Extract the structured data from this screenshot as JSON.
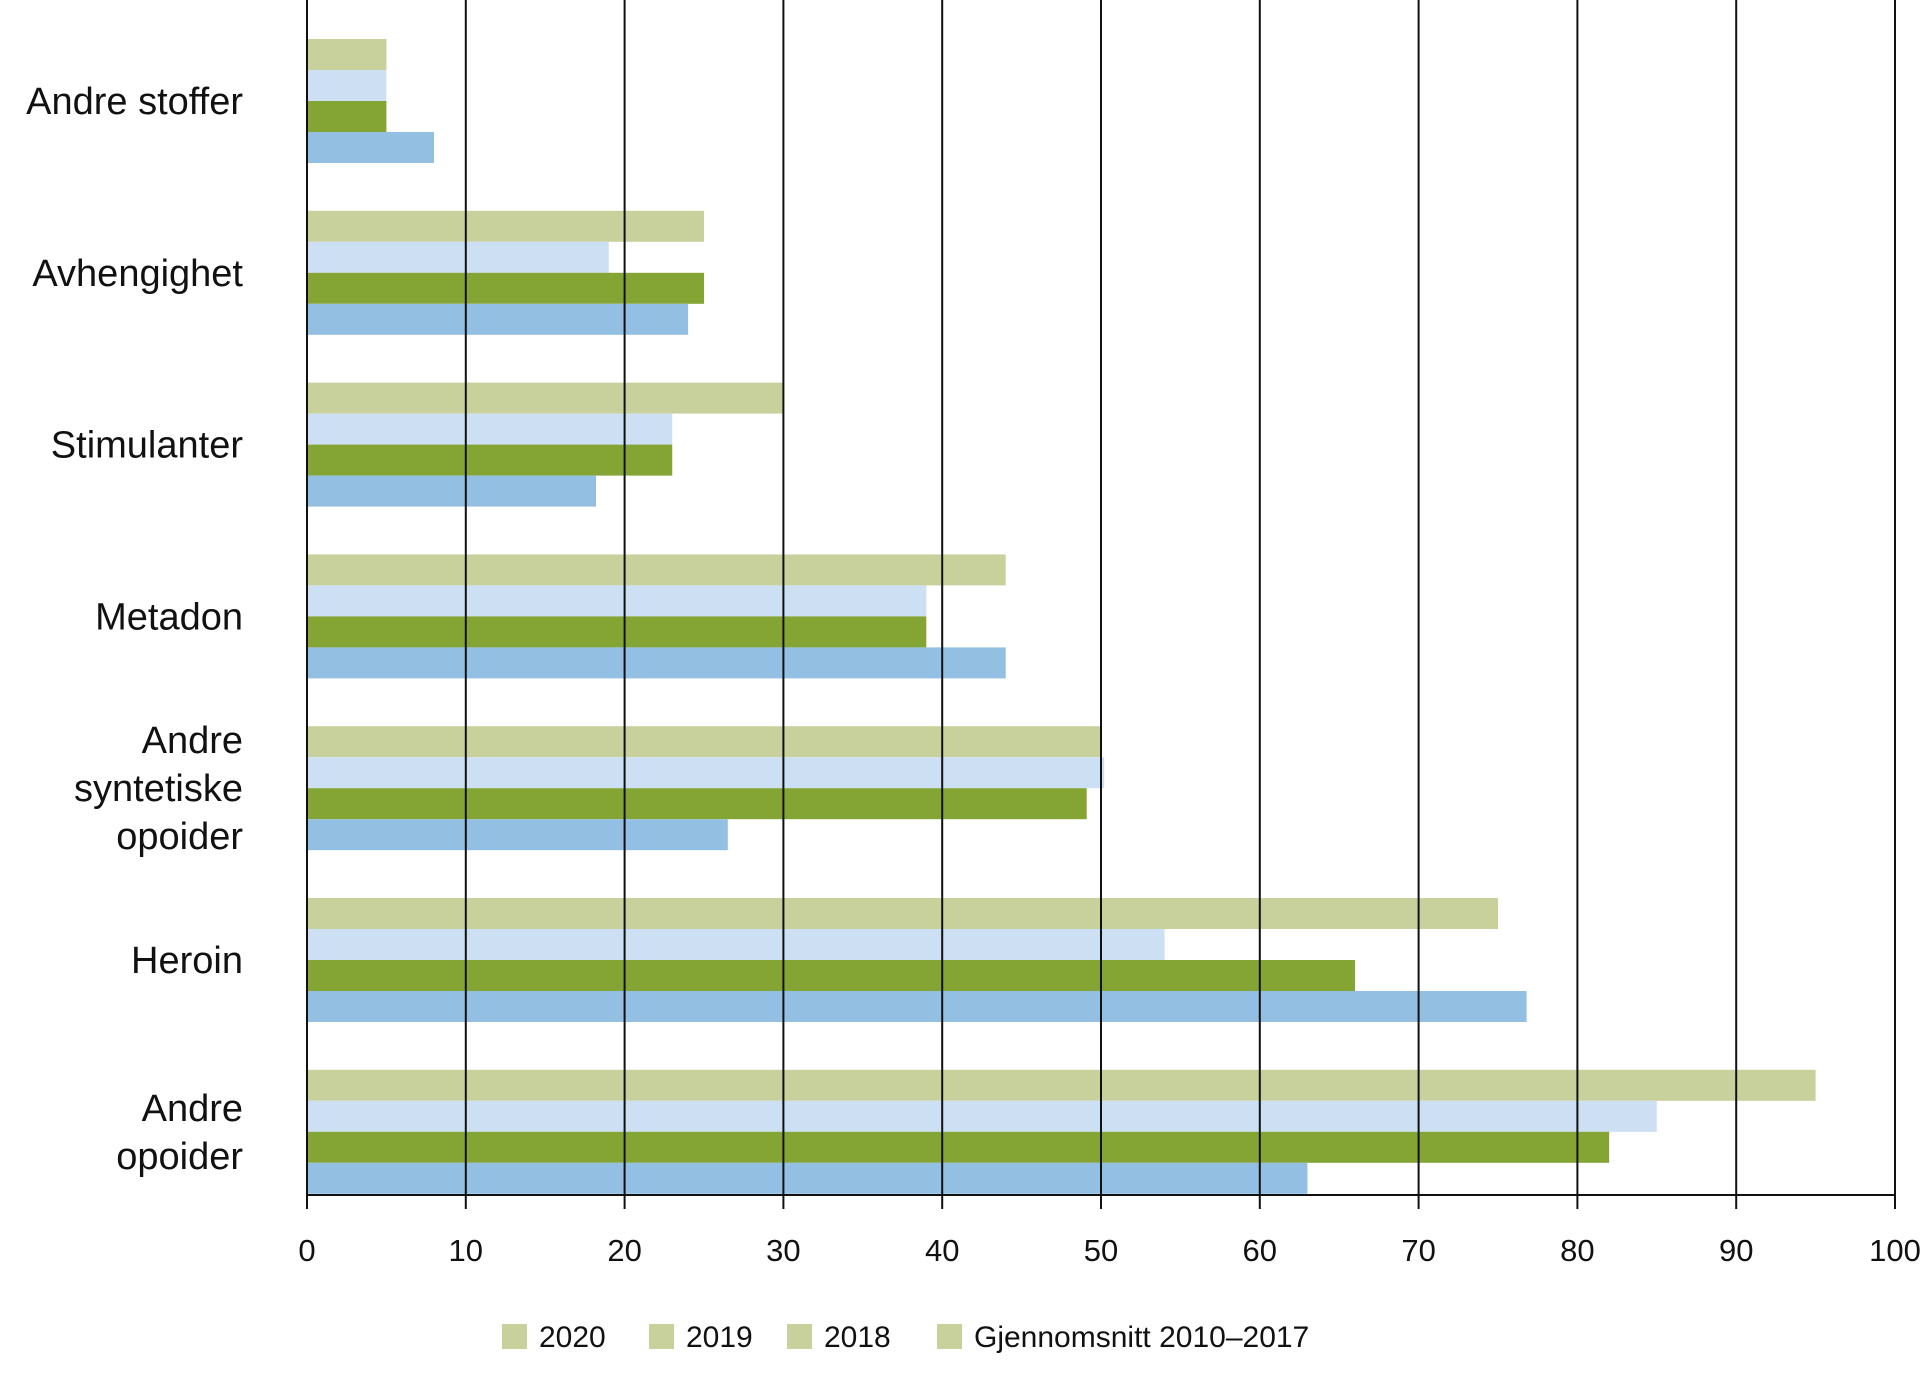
{
  "chart_data": {
    "type": "bar",
    "orientation": "horizontal",
    "title": "",
    "xlabel": "",
    "ylabel": "",
    "xlim": [
      0,
      100
    ],
    "x_ticks": [
      "0",
      "10",
      "20",
      "30",
      "40",
      "50",
      "60",
      "70",
      "80",
      "90",
      "100"
    ],
    "grid": true,
    "legend_position": "bottom",
    "categories": [
      "Andre stoffer",
      "Avhengighet",
      "Stimulanter",
      "Metadon",
      "Andre syntetiske opoider",
      "Heroin",
      "Andre opoider"
    ],
    "category_lines": [
      [
        "Andre stoffer"
      ],
      [
        "Avhengighet"
      ],
      [
        "Stimulanter"
      ],
      [
        "Metadon"
      ],
      [
        "Andre",
        "syntetiske",
        "opoider"
      ],
      [
        "Heroin"
      ],
      [
        "Andre",
        "opoider"
      ]
    ],
    "series": [
      {
        "name": "2020",
        "color": "#c8d19c",
        "values": [
          5,
          25,
          30,
          44,
          50,
          75,
          95
        ]
      },
      {
        "name": "2019",
        "color": "#cddff3",
        "values": [
          5,
          19,
          23,
          39,
          50.2,
          54,
          85
        ]
      },
      {
        "name": "2018",
        "color": "#84a533",
        "values": [
          5,
          25,
          23,
          39,
          49.1,
          66,
          82
        ]
      },
      {
        "name": "Gjennomsnitt 2010–2017",
        "color": "#93bfe3",
        "values": [
          8,
          24,
          18.2,
          44,
          26.5,
          76.8,
          63
        ]
      }
    ],
    "legend_swatch_color": "#c8d19c"
  }
}
